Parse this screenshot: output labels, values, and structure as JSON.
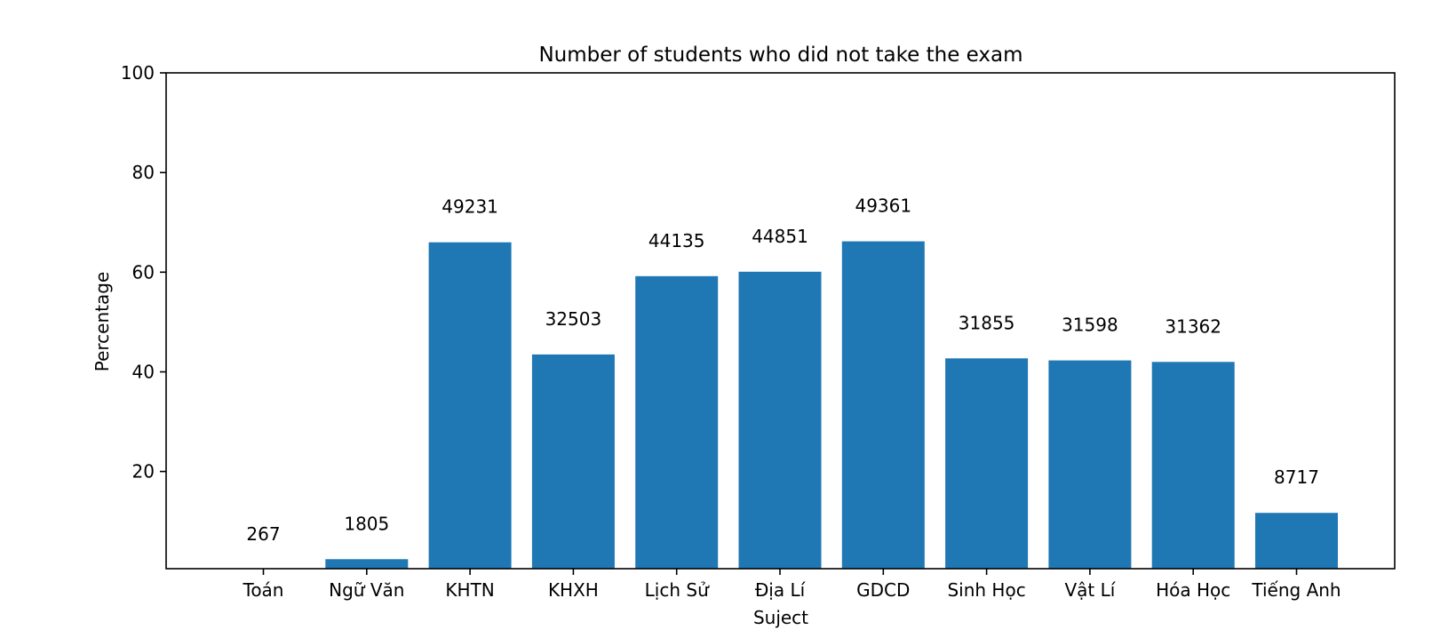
{
  "chart_data": {
    "type": "bar",
    "title": "Number of students who did not take the exam",
    "xlabel": "Suject",
    "ylabel": "Percentage",
    "ylim": [
      0.5,
      100
    ],
    "yticks": [
      20,
      40,
      60,
      80,
      100
    ],
    "grid": false,
    "legend": "none",
    "bar_color": "#1f77b4",
    "categories": [
      "Toán",
      "Ngữ Văn",
      "KHTN",
      "KHXH",
      "Lịch Sử",
      "Địa Lí",
      "GDCD",
      "Sinh Học",
      "Vật Lí",
      "Hóa Học",
      "Tiếng Anh"
    ],
    "values": [
      0.36,
      2.4,
      66.0,
      43.5,
      59.2,
      60.1,
      66.2,
      42.7,
      42.3,
      42.0,
      11.7
    ],
    "data_labels": [
      "267",
      "1805",
      "49231",
      "32503",
      "44135",
      "44851",
      "49361",
      "31855",
      "31598",
      "31362",
      "8717"
    ]
  }
}
